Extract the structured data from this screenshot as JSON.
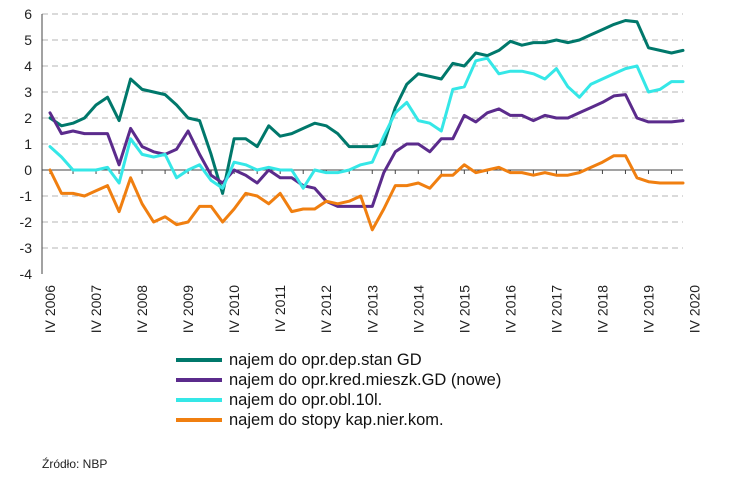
{
  "chart_data": {
    "type": "line",
    "title": "",
    "xlabel": "",
    "ylabel": "",
    "ylim": [
      -4,
      6
    ],
    "yticks": [
      -4,
      -3,
      -2,
      -1,
      0,
      1,
      2,
      3,
      4,
      5,
      6
    ],
    "grid": "horizontal dashed",
    "legend": "bottom",
    "x_tick_labels": [
      "IV 2006",
      "IV 2007",
      "IV 2008",
      "IV 2009",
      "IV 2010",
      "IV 2011",
      "IV 2012",
      "IV 2013",
      "IV 2014",
      "IV 2015",
      "IV 2016",
      "IV 2017",
      "IV 2018",
      "IV 2019",
      "IV 2020"
    ],
    "x_start_quarter": "IV 2006",
    "series": [
      {
        "name": "najem do opr.dep.stan GD",
        "color": "#00786b",
        "values": [
          2.0,
          1.7,
          1.8,
          2.0,
          2.5,
          2.8,
          1.9,
          3.5,
          3.1,
          3.0,
          2.9,
          2.5,
          2.0,
          1.9,
          0.6,
          -0.9,
          1.2,
          1.2,
          0.9,
          1.7,
          1.3,
          1.4,
          1.6,
          1.8,
          1.7,
          1.4,
          0.9,
          0.9,
          0.9,
          1.0,
          2.4,
          3.3,
          3.7,
          3.6,
          3.5,
          4.1,
          4.0,
          4.5,
          4.4,
          4.6,
          4.95,
          4.8,
          4.9,
          4.9,
          5.0,
          4.9,
          5.0,
          5.2,
          5.4,
          5.6,
          5.75,
          5.7,
          4.7,
          4.6,
          4.5,
          4.6
        ]
      },
      {
        "name": "najem do opr.kred.mieszk.GD (nowe)",
        "color": "#5b2b8c",
        "values": [
          2.2,
          1.4,
          1.5,
          1.4,
          1.4,
          1.4,
          0.2,
          1.6,
          0.9,
          0.7,
          0.6,
          0.8,
          1.5,
          0.6,
          -0.2,
          -0.5,
          0.0,
          -0.2,
          -0.5,
          0.0,
          -0.3,
          -0.3,
          -0.6,
          -0.7,
          -1.2,
          -1.4,
          -1.4,
          -1.4,
          -1.4,
          -0.1,
          0.7,
          1.0,
          1.0,
          0.7,
          1.2,
          1.2,
          2.1,
          1.85,
          2.2,
          2.35,
          2.1,
          2.1,
          1.9,
          2.1,
          2.0,
          2.0,
          2.2,
          2.4,
          2.6,
          2.85,
          2.9,
          2.0,
          1.85,
          1.85,
          1.85,
          1.9
        ]
      },
      {
        "name": "najem do opr.obl.10l.",
        "color": "#35e7e7",
        "values": [
          0.9,
          0.5,
          0.0,
          0.0,
          0.0,
          0.1,
          -0.5,
          1.2,
          0.6,
          0.5,
          0.6,
          -0.3,
          0.0,
          0.2,
          -0.4,
          -0.7,
          0.3,
          0.2,
          0.0,
          0.1,
          0.0,
          0.0,
          -0.7,
          0.0,
          -0.1,
          -0.1,
          0.0,
          0.2,
          0.3,
          1.3,
          2.2,
          2.6,
          1.9,
          1.8,
          1.5,
          3.1,
          3.2,
          4.2,
          4.3,
          3.7,
          3.8,
          3.8,
          3.7,
          3.5,
          3.9,
          3.2,
          2.8,
          3.3,
          3.5,
          3.7,
          3.9,
          4.0,
          3.0,
          3.1,
          3.4,
          3.4
        ]
      },
      {
        "name": "najem do stopy kap.nier.kom.",
        "color": "#f07f10",
        "values": [
          0.0,
          -0.9,
          -0.9,
          -1.0,
          -0.8,
          -0.6,
          -1.6,
          -0.3,
          -1.3,
          -2.0,
          -1.8,
          -2.1,
          -2.0,
          -1.4,
          -1.4,
          -2.0,
          -1.5,
          -0.9,
          -1.0,
          -1.3,
          -0.9,
          -1.6,
          -1.5,
          -1.5,
          -1.2,
          -1.3,
          -1.2,
          -1.0,
          -2.3,
          -1.5,
          -0.6,
          -0.6,
          -0.5,
          -0.7,
          -0.2,
          -0.2,
          0.2,
          -0.1,
          0.0,
          0.1,
          -0.1,
          -0.1,
          -0.2,
          -0.1,
          -0.2,
          -0.2,
          -0.1,
          0.1,
          0.3,
          0.55,
          0.55,
          -0.3,
          -0.45,
          -0.5,
          -0.5,
          -0.5
        ]
      }
    ]
  },
  "source": "Źródło: NBP"
}
